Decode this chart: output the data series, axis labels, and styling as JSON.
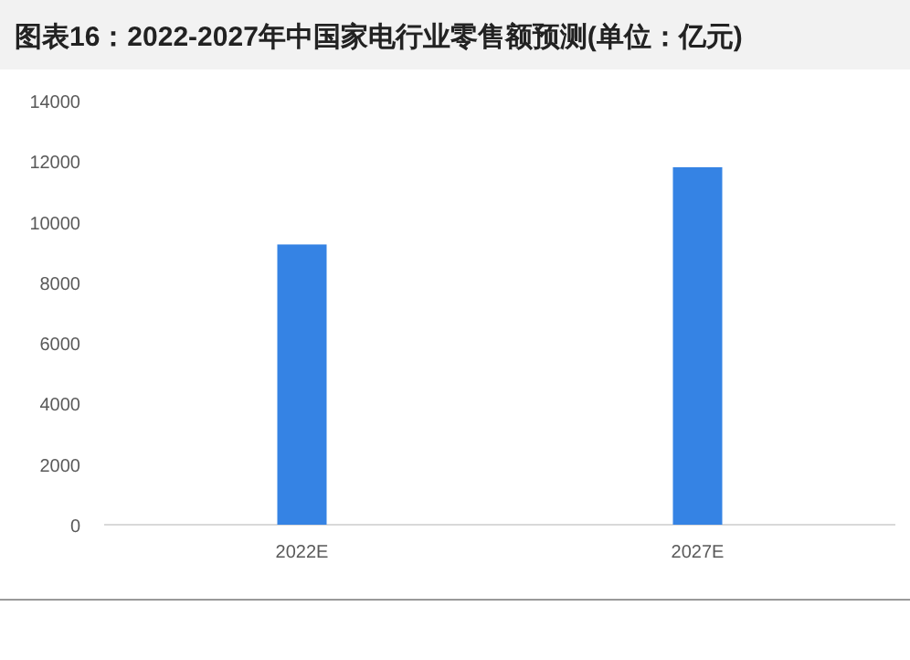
{
  "chart_data": {
    "type": "bar",
    "title": "图表16：2022-2027年中国家电行业零售额预测(单位：亿元)",
    "categories": [
      "2022E",
      "2027E"
    ],
    "values": [
      9250,
      11800
    ],
    "color": "#3583e4",
    "ylim": [
      0,
      14000
    ],
    "yticks": [
      0,
      2000,
      4000,
      6000,
      8000,
      10000,
      12000,
      14000
    ],
    "grid": false
  }
}
